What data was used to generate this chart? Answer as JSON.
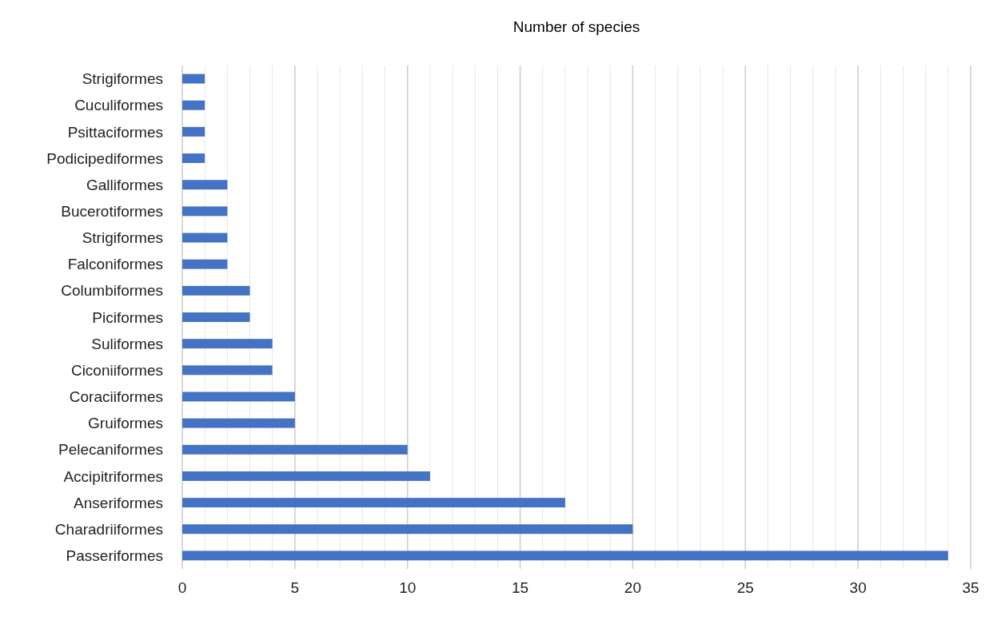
{
  "chart_data": {
    "type": "bar",
    "orientation": "horizontal",
    "title": "Number of species",
    "categories": [
      "Strigiformes",
      "Cuculiformes",
      "Psittaciformes",
      "Podicipediformes",
      "Galliformes",
      "Bucerotiformes",
      "Strigiformes",
      "Falconiformes",
      "Columbiformes",
      "Piciformes",
      "Suliformes",
      "Ciconiiformes",
      "Coraciiformes",
      "Gruiformes",
      "Pelecaniformes",
      "Accipitriformes",
      "Anseriformes",
      "Charadriiformes",
      "Passeriformes"
    ],
    "values": [
      1,
      1,
      1,
      1,
      2,
      2,
      2,
      2,
      3,
      3,
      4,
      4,
      5,
      5,
      10,
      11,
      17,
      20,
      34
    ],
    "color": "#4472c4",
    "xlim": [
      0,
      35
    ],
    "xticks": [
      0,
      {
        "value": 1,
        "label": null
      },
      {
        "value": 2,
        "label": null
      },
      {
        "value": 3,
        "label": null
      },
      {
        "value": 4,
        "label": null
      },
      5,
      {
        "value": 6,
        "label": null
      },
      {
        "value": 7,
        "label": null
      },
      {
        "value": 8,
        "label": null
      },
      {
        "value": 9,
        "label": null
      },
      10,
      {
        "value": 11,
        "label": null
      },
      {
        "value": 12,
        "label": null
      },
      {
        "value": 13,
        "label": null
      },
      {
        "value": 14,
        "label": null
      },
      15,
      {
        "value": 16,
        "label": null
      },
      {
        "value": 17,
        "label": null
      },
      {
        "value": 18,
        "label": null
      },
      {
        "value": 19,
        "label": null
      },
      20,
      {
        "value": 21,
        "label": null
      },
      {
        "value": 22,
        "label": null
      },
      {
        "value": 23,
        "label": null
      },
      {
        "value": 24,
        "label": null
      },
      25,
      {
        "value": 26,
        "label": null
      },
      {
        "value": 27,
        "label": null
      },
      {
        "value": 28,
        "label": null
      },
      {
        "value": 29,
        "label": null
      },
      30,
      {
        "value": 31,
        "label": null
      },
      {
        "value": 32,
        "label": null
      },
      {
        "value": 33,
        "label": null
      },
      {
        "value": 34,
        "label": null
      },
      35
    ],
    "grid": "x"
  }
}
